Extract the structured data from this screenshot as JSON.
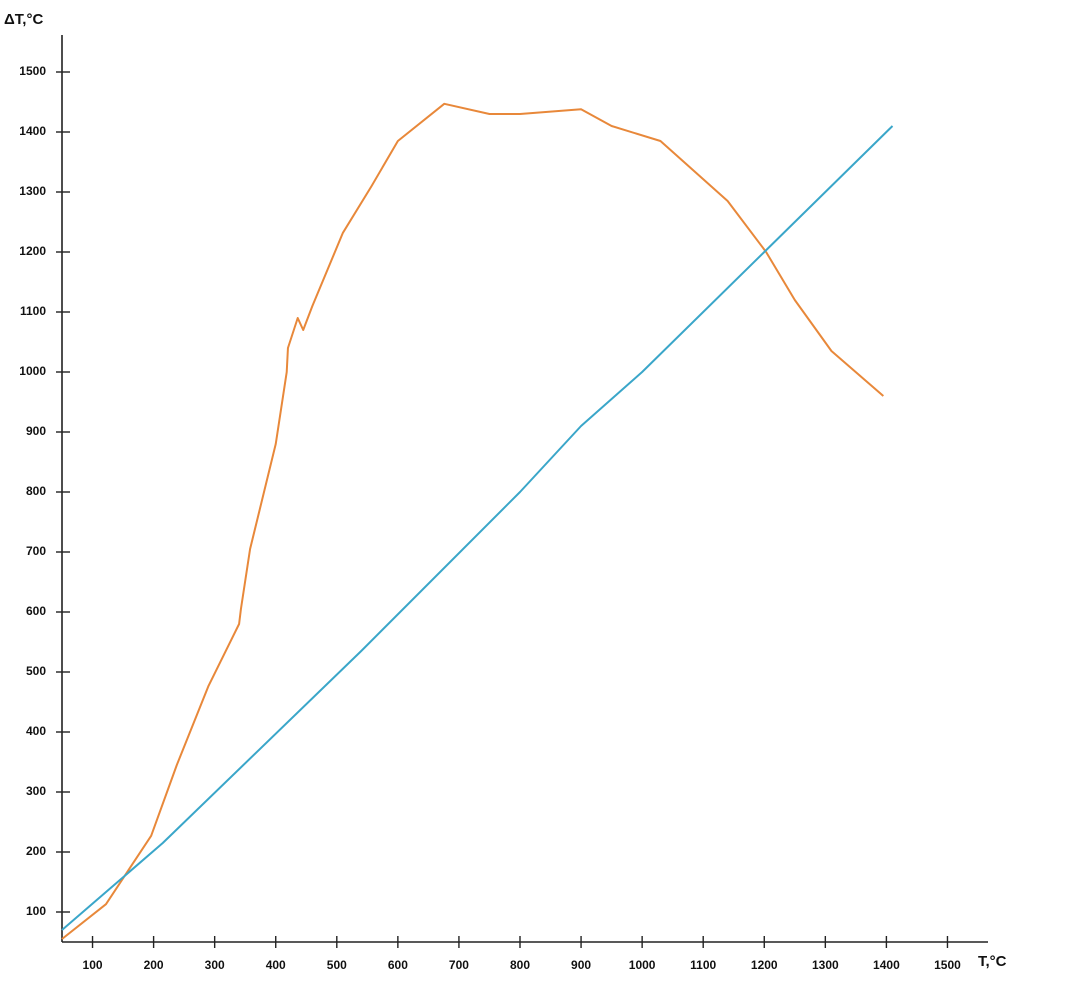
{
  "chart_data": {
    "type": "line",
    "ylabel": "ΔT,°C",
    "xlabel": "T,°C",
    "xlim": [
      50,
      1550
    ],
    "ylim": [
      50,
      1560
    ],
    "xticks": [
      100,
      200,
      300,
      400,
      500,
      600,
      700,
      800,
      900,
      1000,
      1100,
      1200,
      1300,
      1400,
      1500
    ],
    "yticks": [
      100,
      200,
      300,
      400,
      500,
      600,
      700,
      800,
      900,
      1000,
      1100,
      1200,
      1300,
      1400,
      1500
    ],
    "series": [
      {
        "color": "#e8883a",
        "x": [
          50,
          122,
          196,
          238,
          290,
          340,
          343,
          358,
          400,
          418,
          420,
          436,
          445,
          460,
          510,
          557,
          600,
          676,
          750,
          800,
          900,
          950,
          1030,
          1140,
          1203,
          1250,
          1310,
          1395
        ],
        "values": [
          55,
          113,
          227,
          345,
          477,
          580,
          605,
          705,
          880,
          1000,
          1040,
          1090,
          1070,
          1110,
          1232,
          1310,
          1385,
          1447,
          1430,
          1430,
          1438,
          1410,
          1385,
          1285,
          1200,
          1120,
          1035,
          960
        ]
      },
      {
        "color": "#3aa6c9",
        "x": [
          50,
          215,
          540,
          800,
          900,
          1000,
          1200,
          1410
        ],
        "values": [
          70,
          215,
          535,
          800,
          910,
          1000,
          1200,
          1410
        ]
      }
    ]
  }
}
